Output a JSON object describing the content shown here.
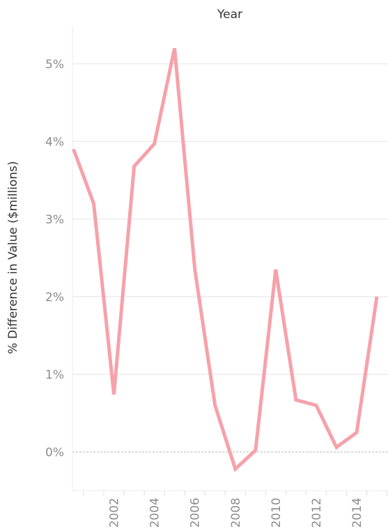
{
  "chart_data": {
    "type": "line",
    "title": "",
    "xlabel": "Year",
    "ylabel": "% Difference in Value ($millions)",
    "x_ticks": [
      "2002",
      "2004",
      "2006",
      "2008",
      "2010",
      "2012",
      "2014"
    ],
    "y_ticks": [
      "0%",
      "1%",
      "2%",
      "3%",
      "4%",
      "5%"
    ],
    "ylim": [
      -0.5,
      5.5
    ],
    "xlim": [
      1999.95,
      2015.55
    ],
    "grid": true,
    "legend": "none",
    "series": [
      {
        "color": "#f7a1aa",
        "x": [
          2000,
          2001,
          2002,
          2003,
          2004,
          2005,
          2006,
          2007,
          2008,
          2009,
          2010,
          2011,
          2012,
          2013,
          2014,
          2015
        ],
        "values": [
          3.9,
          3.2,
          0.74,
          3.68,
          3.97,
          5.2,
          2.35,
          0.6,
          -0.22,
          0.02,
          2.35,
          0.67,
          0.6,
          0.06,
          0.25,
          2.0
        ]
      }
    ]
  }
}
